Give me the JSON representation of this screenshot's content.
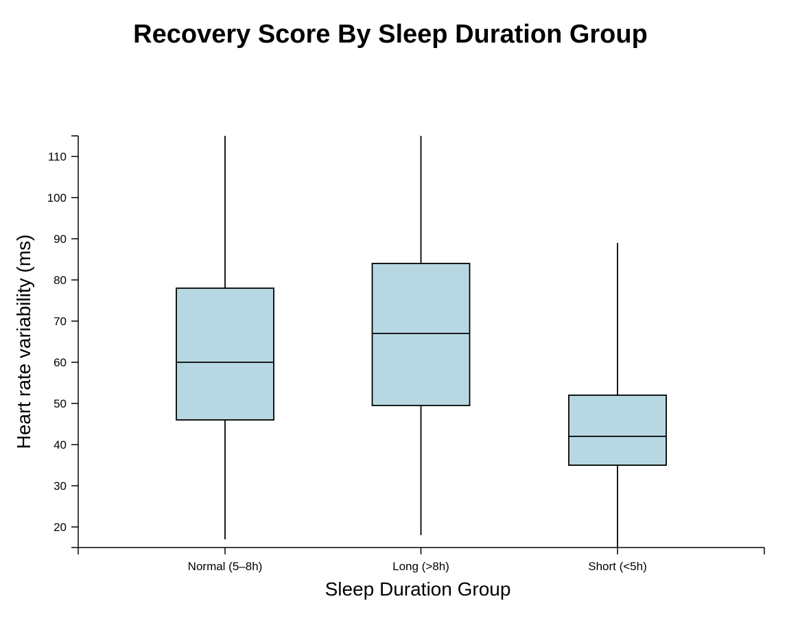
{
  "chart_data": {
    "type": "boxplot",
    "title": "Recovery Score By Sleep Duration Group",
    "xlabel": "Sleep Duration Group",
    "ylabel": "Heart rate variability (ms)",
    "categories": [
      "Normal (5–8h)",
      "Long (>8h)",
      "Short (<5h)"
    ],
    "boxes": [
      {
        "category": "Normal (5–8h)",
        "whisker_low": 17,
        "q1": 46,
        "median": 60,
        "q3": 78,
        "whisker_high": 115
      },
      {
        "category": "Long (>8h)",
        "whisker_low": 18,
        "q1": 49.5,
        "median": 67,
        "q3": 84,
        "whisker_high": 115
      },
      {
        "category": "Short (<5h)",
        "whisker_low": 15,
        "q1": 35,
        "median": 42,
        "q3": 52,
        "whisker_high": 89
      }
    ],
    "ylim": [
      15,
      115
    ],
    "yticks": [
      20,
      30,
      40,
      50,
      60,
      70,
      80,
      90,
      100,
      110
    ],
    "box_color": "#b7d8e3",
    "line_color": "#000000",
    "grid": false,
    "legend": "none"
  }
}
